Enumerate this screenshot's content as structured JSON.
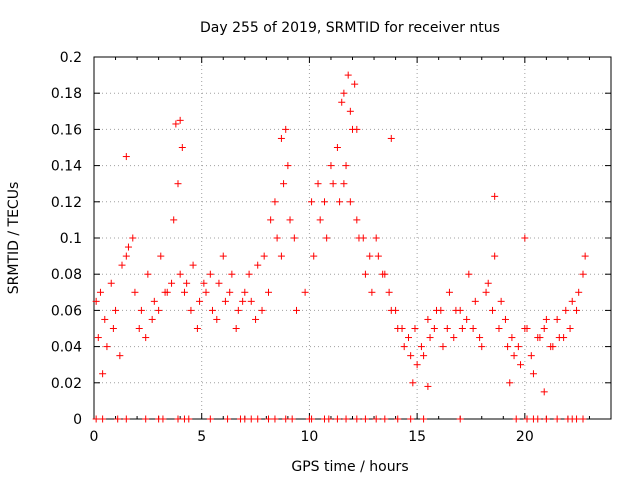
{
  "chart_data": {
    "type": "scatter",
    "title": "Day 255 of 2019, SRMTID for receiver ntus",
    "xlabel": "GPS time / hours",
    "ylabel": "SRMTID / TECUs",
    "xlim": [
      0,
      24
    ],
    "ylim": [
      0,
      0.2
    ],
    "xticks": [
      0,
      5,
      10,
      15,
      20
    ],
    "xtick_labels": [
      "0",
      "5",
      "10",
      "15",
      "20"
    ],
    "yticks": [
      0,
      0.02,
      0.04,
      0.06,
      0.08,
      0.1,
      0.12,
      0.14,
      0.16,
      0.18,
      0.2
    ],
    "ytick_labels": [
      "0",
      "0.02",
      "0.04",
      "0.06",
      "0.08",
      "0.1",
      "0.12",
      "0.14",
      "0.16",
      "0.18",
      "0.2"
    ],
    "grid": true,
    "marker": "plus",
    "color": "#ff0000",
    "series": [
      {
        "name": "SRMTID",
        "x": [
          0.1,
          0.3,
          0.5,
          0.8,
          1.0,
          1.3,
          1.6,
          1.9,
          2.2,
          2.5,
          2.8,
          3.1,
          3.4,
          3.7,
          4.0,
          4.3,
          4.6,
          4.9,
          5.2,
          5.5,
          5.8,
          6.1,
          6.4,
          6.7,
          7.0,
          7.3,
          7.6,
          7.9,
          8.2,
          8.5,
          8.8,
          9.1,
          9.4,
          9.8,
          10.1,
          10.4,
          10.7,
          11.0,
          11.3,
          11.6,
          11.9,
          12.2,
          12.5,
          12.8,
          13.1,
          13.4,
          13.7,
          14.0,
          14.3,
          14.6,
          14.9,
          15.2,
          15.5,
          15.8,
          16.1,
          16.4,
          16.7,
          17.0,
          17.3,
          17.6,
          17.9,
          18.2,
          18.5,
          18.8,
          19.1,
          19.4,
          19.7,
          20.0,
          20.3,
          20.6,
          20.9,
          21.2,
          21.5,
          21.8,
          22.1,
          22.4,
          22.7,
          0.2,
          0.6,
          0.9,
          1.2,
          1.5,
          1.8,
          2.1,
          2.4,
          2.7,
          3.0,
          3.3,
          3.6,
          3.9,
          4.2,
          4.5,
          4.8,
          5.1,
          5.4,
          5.7,
          6.0,
          6.3,
          6.6,
          6.9,
          7.2,
          7.5,
          7.8,
          8.1,
          8.4,
          8.7,
          9.0,
          9.3,
          10.2,
          10.5,
          10.8,
          11.1,
          11.4,
          11.7,
          12.0,
          12.3,
          12.6,
          12.9,
          13.2,
          13.5,
          13.8,
          14.1,
          14.4,
          14.7,
          15.0,
          15.3,
          15.6,
          15.9,
          16.2,
          16.5,
          16.8,
          17.1,
          17.4,
          17.7,
          18.0,
          18.3,
          18.6,
          18.9,
          19.2,
          19.5,
          19.8,
          20.1,
          20.4,
          20.7,
          21.0,
          21.3,
          21.6,
          21.9,
          22.2,
          22.5,
          22.8,
          3.8,
          4.0,
          8.7,
          8.9,
          11.6,
          11.8,
          12.1,
          13.8,
          18.6,
          20.0,
          0.4,
          1.5,
          4.1,
          11.5,
          11.9,
          12.2,
          14.8,
          15.5,
          19.3,
          20.9
        ],
        "y": [
          0.065,
          0.07,
          0.055,
          0.075,
          0.06,
          0.085,
          0.095,
          0.07,
          0.06,
          0.08,
          0.065,
          0.09,
          0.07,
          0.11,
          0.08,
          0.075,
          0.085,
          0.065,
          0.07,
          0.06,
          0.075,
          0.065,
          0.08,
          0.06,
          0.07,
          0.065,
          0.085,
          0.09,
          0.11,
          0.1,
          0.13,
          0.11,
          0.06,
          0.07,
          0.12,
          0.13,
          0.12,
          0.14,
          0.15,
          0.13,
          0.12,
          0.11,
          0.1,
          0.09,
          0.1,
          0.08,
          0.07,
          0.06,
          0.05,
          0.045,
          0.05,
          0.04,
          0.055,
          0.05,
          0.06,
          0.05,
          0.045,
          0.06,
          0.055,
          0.05,
          0.045,
          0.07,
          0.06,
          0.05,
          0.055,
          0.045,
          0.04,
          0.05,
          0.035,
          0.045,
          0.05,
          0.04,
          0.055,
          0.045,
          0.05,
          0.06,
          0.08,
          0.045,
          0.04,
          0.05,
          0.035,
          0.09,
          0.1,
          0.05,
          0.045,
          0.055,
          0.06,
          0.07,
          0.075,
          0.13,
          0.07,
          0.06,
          0.05,
          0.075,
          0.08,
          0.055,
          0.09,
          0.07,
          0.05,
          0.065,
          0.08,
          0.055,
          0.06,
          0.07,
          0.12,
          0.09,
          0.14,
          0.1,
          0.09,
          0.11,
          0.1,
          0.13,
          0.12,
          0.14,
          0.16,
          0.1,
          0.08,
          0.07,
          0.09,
          0.08,
          0.06,
          0.05,
          0.04,
          0.035,
          0.03,
          0.035,
          0.045,
          0.06,
          0.04,
          0.07,
          0.06,
          0.05,
          0.08,
          0.065,
          0.04,
          0.075,
          0.09,
          0.065,
          0.04,
          0.035,
          0.03,
          0.05,
          0.025,
          0.045,
          0.055,
          0.04,
          0.045,
          0.06,
          0.065,
          0.07,
          0.09,
          0.163,
          0.165,
          0.155,
          0.16,
          0.18,
          0.19,
          0.185,
          0.155,
          0.123,
          0.1,
          0.025,
          0.145,
          0.15,
          0.175,
          0.17,
          0.16,
          0.02,
          0.018,
          0.02,
          0.015
        ]
      }
    ],
    "zero_markers_x": [
      0.1,
      0.4,
      1.1,
      1.5,
      2.4,
      3.0,
      3.2,
      3.9,
      4.2,
      4.4,
      5.4,
      6.2,
      6.8,
      7.0,
      7.3,
      7.6,
      8.1,
      8.4,
      8.9,
      9.2,
      10.0,
      10.1,
      10.7,
      10.9,
      11.3,
      11.7,
      12.2,
      12.6,
      13.1,
      13.5,
      14.1,
      14.7,
      15.3,
      17.0,
      19.6,
      20.1,
      20.4,
      20.6,
      21.0,
      21.5,
      22.0,
      22.2,
      22.4,
      22.7
    ]
  }
}
